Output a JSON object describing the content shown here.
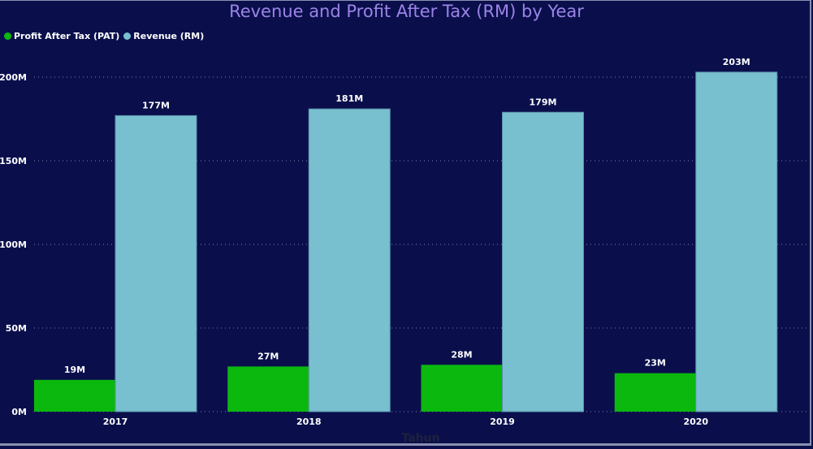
{
  "chart_data": {
    "type": "bar",
    "title": "Revenue and Profit After Tax (RM) by Year",
    "xlabel": "Tahun",
    "ylabel": "",
    "categories": [
      "2017",
      "2018",
      "2019",
      "2020"
    ],
    "series": [
      {
        "name": "Profit After Tax (PAT)",
        "color": "#0ab80e",
        "values": [
          19,
          27,
          28,
          23
        ],
        "labels": [
          "19M",
          "27M",
          "28M",
          "23M"
        ]
      },
      {
        "name": "Revenue (RM)",
        "color": "#78c0d0",
        "values": [
          177,
          181,
          179,
          203
        ],
        "labels": [
          "177M",
          "181M",
          "179M",
          "203M"
        ]
      }
    ],
    "yticks": [
      0,
      50,
      100,
      150,
      200
    ],
    "ytick_labels": [
      "0M",
      "50M",
      "100M",
      "150M",
      "200M"
    ],
    "ylim": [
      0,
      200
    ],
    "grid": true,
    "legend_position": "top-left",
    "unit": "M"
  },
  "colors": {
    "background": "#0a0f4c",
    "title": "#9b84e6",
    "gridline": "#7a80a8"
  }
}
